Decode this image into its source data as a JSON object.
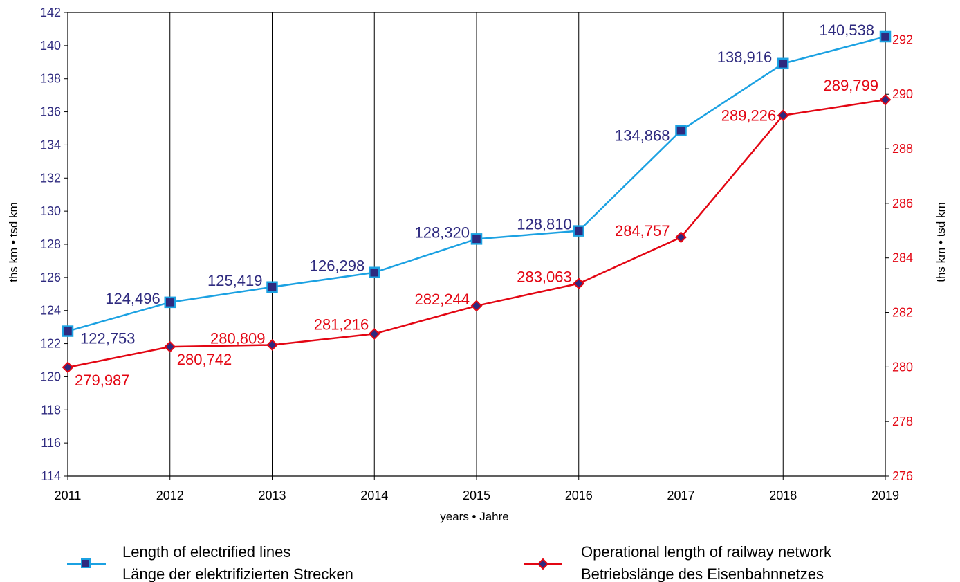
{
  "chart_data": {
    "type": "line",
    "x": [
      "2011",
      "2012",
      "2013",
      "2014",
      "2015",
      "2016",
      "2017",
      "2018",
      "2019"
    ],
    "xlabel": "years • Jahre",
    "ylabel_left": "ths km • tsd km",
    "ylabel_right": "ths km • tsd km",
    "ylim_left": [
      114,
      142
    ],
    "ylim_right": [
      276,
      293
    ],
    "yticks_left": [
      "114",
      "116",
      "118",
      "120",
      "122",
      "124",
      "126",
      "128",
      "130",
      "132",
      "134",
      "136",
      "138",
      "140",
      "142"
    ],
    "yticks_right": [
      "276",
      "278",
      "280",
      "282",
      "284",
      "286",
      "288",
      "290",
      "292"
    ],
    "grid": "vertical",
    "legend_position": "bottom",
    "series": [
      {
        "name": "Length of electrified lines",
        "name_de": "Länge der elektrifizierten Strecken",
        "axis": "left",
        "values": [
          122.753,
          124.496,
          125.419,
          126.298,
          128.32,
          128.81,
          134.868,
          138.916,
          140.538
        ],
        "labels": [
          "122,753",
          "124,496",
          "125,419",
          "126,298",
          "128,320",
          "128,810",
          "134,868",
          "138,916",
          "140,538"
        ],
        "color": "#1ba1e2",
        "marker_color": "#2e2a7f",
        "label_color": "#2e2a7f",
        "marker": "square"
      },
      {
        "name": "Operational length of railway network",
        "name_de": "Betriebslänge des Eisenbahnnetzes",
        "axis": "right",
        "values": [
          279.987,
          280.742,
          280.809,
          281.216,
          282.244,
          283.063,
          284.757,
          289.226,
          289.799
        ],
        "labels": [
          "279,987",
          "280,742",
          "280,809",
          "281,216",
          "282,244",
          "283,063",
          "284,757",
          "289,226",
          "289,799"
        ],
        "color": "#e30613",
        "marker_color": "#2e2a7f",
        "label_color": "#e30613",
        "marker": "diamond"
      }
    ]
  }
}
